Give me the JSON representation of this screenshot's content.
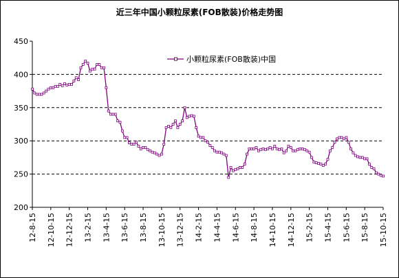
{
  "chart_data": {
    "type": "line",
    "title": "近三年中国小颗粒尿素(FOB散装)价格走势图",
    "categories": [
      "12-8-15",
      null,
      null,
      null,
      null,
      null,
      null,
      null,
      "12-10-15",
      null,
      null,
      null,
      null,
      null,
      null,
      null,
      "12-12-15",
      null,
      null,
      null,
      null,
      null,
      null,
      null,
      "13-2-15",
      null,
      null,
      null,
      null,
      null,
      null,
      null,
      "13-4-15",
      null,
      null,
      null,
      null,
      null,
      null,
      null,
      "13-6-15",
      null,
      null,
      null,
      null,
      null,
      null,
      null,
      "13-8-15",
      null,
      null,
      null,
      null,
      null,
      null,
      null,
      "13-10-15",
      null,
      null,
      null,
      null,
      null,
      null,
      null,
      "13-12-15",
      null,
      null,
      null,
      null,
      null,
      null,
      null,
      "14-2-15",
      null,
      null,
      null,
      null,
      null,
      null,
      null,
      "14-4-15",
      null,
      null,
      null,
      null,
      null,
      null,
      null,
      "14-6-15",
      null,
      null,
      null,
      null,
      null,
      null,
      null,
      "14-8-15",
      null,
      null,
      null,
      null,
      null,
      null,
      null,
      "14-10-15",
      null,
      null,
      null,
      null,
      null,
      null,
      null,
      "14-12-15",
      null,
      null,
      null,
      null,
      null,
      null,
      null,
      "15-2-15",
      null,
      null,
      null,
      null,
      null,
      null,
      null,
      "15-4-15",
      null,
      null,
      null,
      null,
      null,
      null,
      null,
      "15-6-15",
      null,
      null,
      null,
      null,
      null,
      null,
      null,
      "15-8-15",
      null,
      null,
      null,
      null,
      null,
      null,
      null,
      "15-10-15"
    ],
    "series": [
      {
        "name": "小颗粒尿素(FOB散装)中国",
        "color": "#800080",
        "values": [
          378,
          372,
          370,
          370,
          370,
          372,
          375,
          378,
          380,
          380,
          382,
          382,
          385,
          383,
          386,
          384,
          385,
          385,
          390,
          395,
          392,
          410,
          415,
          420,
          417,
          405,
          408,
          408,
          415,
          415,
          410,
          410,
          380,
          345,
          340,
          340,
          340,
          330,
          328,
          315,
          305,
          305,
          297,
          295,
          295,
          298,
          292,
          288,
          290,
          290,
          287,
          285,
          283,
          282,
          280,
          278,
          280,
          295,
          320,
          322,
          320,
          325,
          330,
          320,
          325,
          330,
          350,
          335,
          337,
          338,
          337,
          320,
          307,
          305,
          305,
          300,
          298,
          293,
          290,
          285,
          283,
          283,
          282,
          280,
          278,
          245,
          260,
          255,
          257,
          258,
          260,
          260,
          265,
          280,
          288,
          288,
          288,
          290,
          285,
          287,
          288,
          287,
          288,
          290,
          288,
          292,
          288,
          287,
          288,
          282,
          285,
          292,
          290,
          285,
          285,
          287,
          288,
          288,
          287,
          285,
          283,
          275,
          268,
          267,
          266,
          265,
          263,
          265,
          272,
          285,
          290,
          298,
          303,
          305,
          305,
          303,
          305,
          298,
          288,
          282,
          278,
          276,
          275,
          275,
          273,
          273,
          265,
          260,
          258,
          252,
          250,
          248,
          247
        ]
      }
    ],
    "ylim": [
      200,
      450
    ],
    "yticks": [
      200,
      250,
      300,
      350,
      400,
      450
    ],
    "grid": true
  }
}
